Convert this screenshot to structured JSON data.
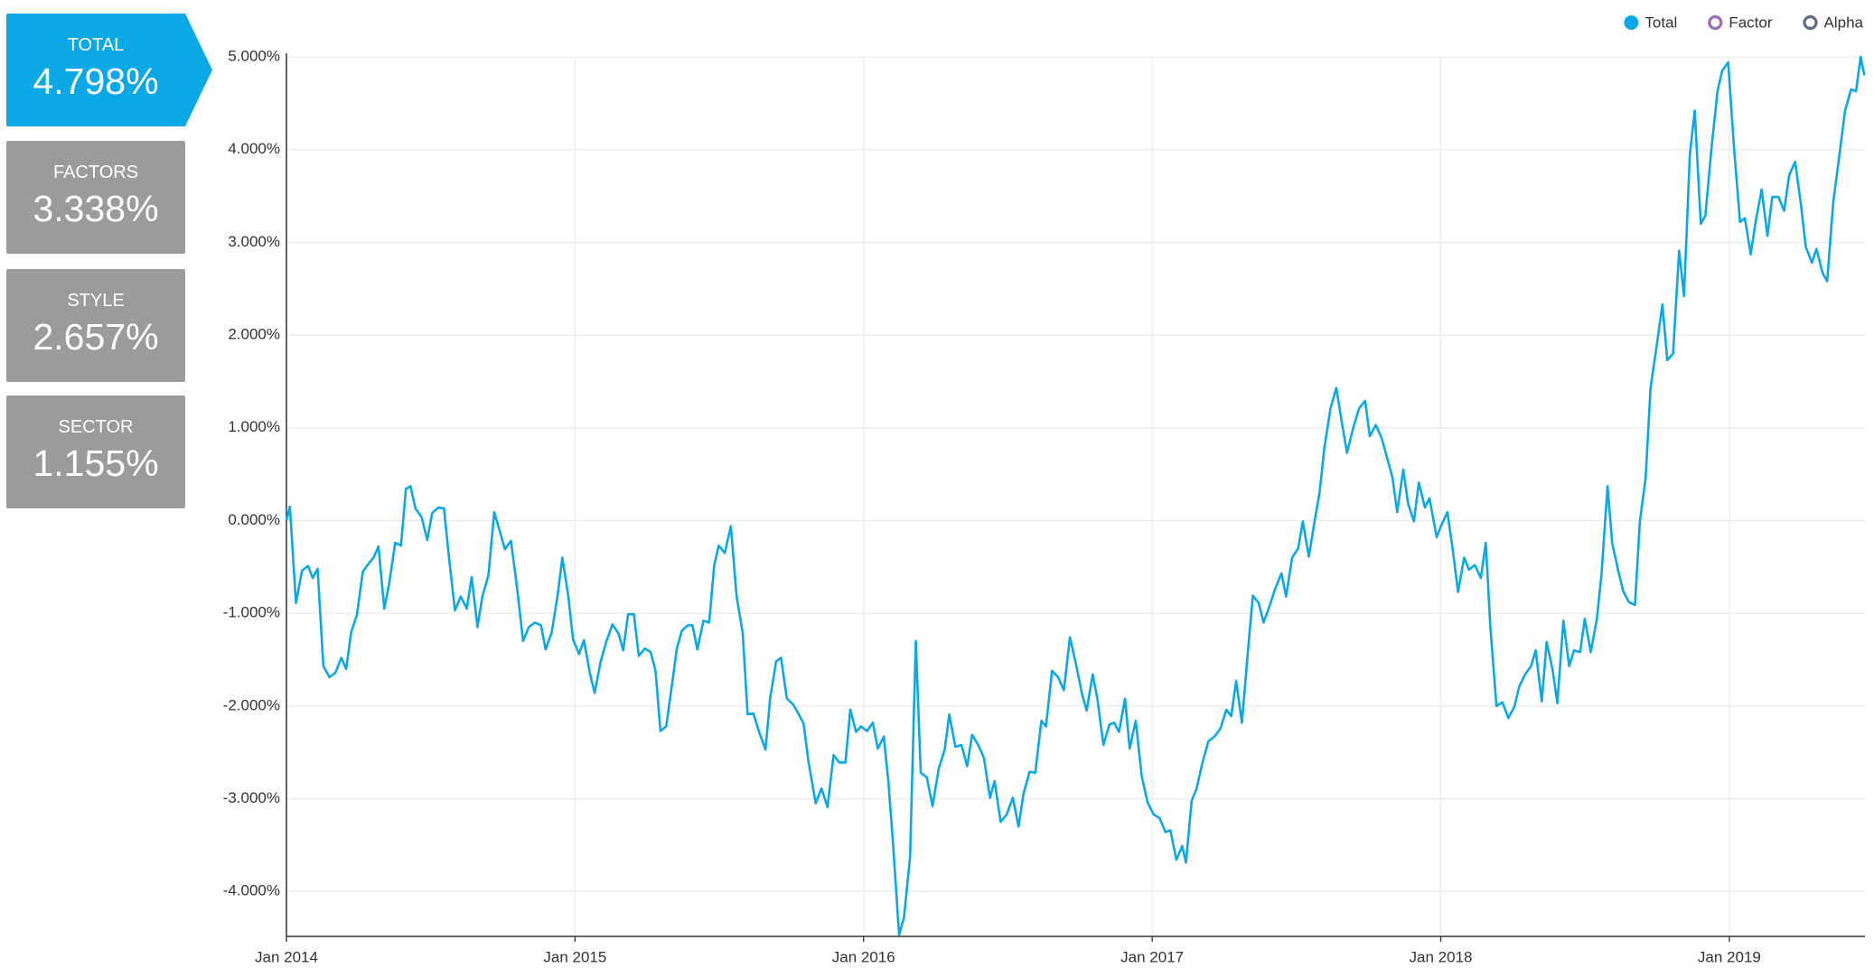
{
  "summary_cards": [
    {
      "label": "TOTAL",
      "value": "4.798%"
    },
    {
      "label": "FACTORS",
      "value": "3.338%"
    },
    {
      "label": "STYLE",
      "value": "2.657%"
    },
    {
      "label": "SECTOR",
      "value": "1.155%"
    }
  ],
  "chart_data": {
    "type": "line",
    "xlim": [
      2014,
      2019.47
    ],
    "xticks": [
      {
        "value": 2014,
        "label": "Jan 2014"
      },
      {
        "value": 2015,
        "label": "Jan 2015"
      },
      {
        "value": 2016,
        "label": "Jan 2016"
      },
      {
        "value": 2017,
        "label": "Jan 2017"
      },
      {
        "value": 2018,
        "label": "Jan 2018"
      },
      {
        "value": 2019,
        "label": "Jan 2019"
      }
    ],
    "ylim": [
      -4.485,
      5
    ],
    "yticks": [
      {
        "value": -4,
        "label": "-4.000%"
      },
      {
        "value": -3,
        "label": "-3.000%"
      },
      {
        "value": -2,
        "label": "-2.000%"
      },
      {
        "value": -1,
        "label": "-1.000%"
      },
      {
        "value": 0,
        "label": "0.000%"
      },
      {
        "value": 1,
        "label": "1.000%"
      },
      {
        "value": 2,
        "label": "2.000%"
      },
      {
        "value": 3,
        "label": "3.000%"
      },
      {
        "value": 4,
        "label": "4.000%"
      },
      {
        "value": 5,
        "label": "5.000%"
      }
    ],
    "grid": true,
    "legend": "top-right",
    "x": [
      2014.0,
      2014.012,
      2014.033,
      2014.054,
      2014.075,
      2014.091,
      2014.108,
      2014.128,
      2014.149,
      2014.17,
      2014.19,
      2014.207,
      2014.224,
      2014.244,
      2014.265,
      2014.286,
      2014.302,
      2014.319,
      2014.339,
      2014.356,
      2014.377,
      2014.397,
      2014.414,
      2014.43,
      2014.447,
      2014.468,
      2014.488,
      2014.505,
      2014.526,
      2014.546,
      2014.563,
      2014.584,
      2014.604,
      2014.625,
      2014.642,
      2014.662,
      2014.679,
      2014.7,
      2014.72,
      2014.737,
      2014.757,
      2014.778,
      2014.799,
      2014.82,
      2014.84,
      2014.861,
      2014.882,
      2014.898,
      2014.919,
      2014.94,
      2014.956,
      2014.977,
      2014.993,
      2015.014,
      2015.031,
      2015.051,
      2015.068,
      2015.089,
      2015.109,
      2015.13,
      2015.151,
      2015.167,
      2015.184,
      2015.204,
      2015.221,
      2015.242,
      2015.262,
      2015.279,
      2015.296,
      2015.316,
      2015.333,
      2015.353,
      2015.37,
      2015.391,
      2015.407,
      2015.424,
      2015.445,
      2015.465,
      2015.482,
      2015.498,
      2015.519,
      2015.54,
      2015.56,
      2015.581,
      2015.598,
      2015.618,
      2015.639,
      2015.66,
      2015.676,
      2015.697,
      2015.714,
      2015.734,
      2015.755,
      2015.772,
      2015.792,
      2015.809,
      2015.834,
      2015.854,
      2015.875,
      2015.896,
      2015.916,
      2015.937,
      2015.954,
      2015.974,
      2015.991,
      2016.012,
      2016.032,
      2016.049,
      2016.07,
      2016.086,
      2016.103,
      2016.123,
      2016.14,
      2016.161,
      2016.181,
      2016.198,
      2016.219,
      2016.239,
      2016.26,
      2016.281,
      2016.297,
      2016.318,
      2016.339,
      2016.359,
      2016.376,
      2016.397,
      2016.417,
      2016.438,
      2016.454,
      2016.475,
      2016.496,
      2016.517,
      2016.537,
      2016.554,
      2016.575,
      2016.595,
      2016.616,
      2016.632,
      2016.653,
      2016.674,
      2016.694,
      2016.715,
      2016.736,
      2016.757,
      2016.773,
      2016.794,
      2016.81,
      2016.831,
      2016.852,
      2016.868,
      2016.885,
      2016.906,
      2016.922,
      2016.943,
      2016.964,
      2016.984,
      2017.005,
      2017.026,
      2017.046,
      2017.063,
      2017.084,
      2017.104,
      2017.117,
      2017.137,
      2017.154,
      2017.175,
      2017.195,
      2017.216,
      2017.237,
      2017.257,
      2017.274,
      2017.291,
      2017.311,
      2017.332,
      2017.349,
      2017.369,
      2017.386,
      2017.406,
      2017.427,
      2017.448,
      2017.464,
      2017.485,
      2017.506,
      2017.522,
      2017.543,
      2017.56,
      2017.58,
      2017.597,
      2017.618,
      2017.638,
      2017.655,
      2017.675,
      2017.696,
      2017.717,
      2017.738,
      2017.754,
      2017.775,
      2017.795,
      2017.812,
      2017.833,
      2017.849,
      2017.87,
      2017.887,
      2017.907,
      2017.924,
      2017.945,
      2017.961,
      2017.986,
      2018.002,
      2018.023,
      2018.04,
      2018.06,
      2018.081,
      2018.098,
      2018.118,
      2018.139,
      2018.156,
      2018.172,
      2018.193,
      2018.214,
      2018.234,
      2018.255,
      2018.272,
      2018.292,
      2018.313,
      2018.329,
      2018.35,
      2018.367,
      2018.387,
      2018.404,
      2018.425,
      2018.445,
      2018.462,
      2018.483,
      2018.499,
      2018.52,
      2018.541,
      2018.557,
      2018.578,
      2018.594,
      2018.615,
      2018.632,
      2018.652,
      2018.673,
      2018.69,
      2018.71,
      2018.727,
      2018.748,
      2018.768,
      2018.785,
      2018.805,
      2018.826,
      2018.843,
      2018.863,
      2018.88,
      2018.901,
      2018.917,
      2018.938,
      2018.959,
      2018.975,
      2018.996,
      2019.017,
      2019.037,
      2019.054,
      2019.074,
      2019.091,
      2019.112,
      2019.132,
      2019.149,
      2019.17,
      2019.19,
      2019.207,
      2019.228,
      2019.248,
      2019.265,
      2019.286,
      2019.302,
      2019.323,
      2019.339,
      2019.36,
      2019.381,
      2019.401,
      2019.422,
      2019.439,
      2019.455,
      2019.468
    ],
    "series": [
      {
        "name": "Total",
        "color": "#0ba8e8",
        "values": [
          0,
          0.15,
          -0.89,
          -0.54,
          -0.49,
          -0.62,
          -0.52,
          -1.57,
          -1.69,
          -1.64,
          -1.48,
          -1.6,
          -1.21,
          -1.02,
          -0.55,
          -0.46,
          -0.4,
          -0.28,
          -0.95,
          -0.68,
          -0.24,
          -0.27,
          0.34,
          0.37,
          0.13,
          0.04,
          -0.21,
          0.08,
          0.14,
          0.13,
          -0.39,
          -0.97,
          -0.82,
          -0.95,
          -0.61,
          -1.15,
          -0.82,
          -0.59,
          0.09,
          -0.09,
          -0.31,
          -0.22,
          -0.72,
          -1.3,
          -1.15,
          -1.1,
          -1.13,
          -1.39,
          -1.21,
          -0.8,
          -0.4,
          -0.82,
          -1.28,
          -1.44,
          -1.29,
          -1.64,
          -1.86,
          -1.52,
          -1.3,
          -1.12,
          -1.22,
          -1.4,
          -1.01,
          -1.01,
          -1.46,
          -1.38,
          -1.42,
          -1.62,
          -2.27,
          -2.22,
          -1.84,
          -1.38,
          -1.19,
          -1.13,
          -1.13,
          -1.39,
          -1.08,
          -1.1,
          -0.49,
          -0.27,
          -0.35,
          -0.06,
          -0.82,
          -1.21,
          -2.09,
          -2.08,
          -2.29,
          -2.47,
          -1.92,
          -1.52,
          -1.48,
          -1.92,
          -1.98,
          -2.07,
          -2.19,
          -2.6,
          -3.05,
          -2.89,
          -3.09,
          -2.53,
          -2.61,
          -2.61,
          -2.04,
          -2.28,
          -2.22,
          -2.27,
          -2.18,
          -2.46,
          -2.33,
          -2.82,
          -3.53,
          -4.47,
          -4.28,
          -3.63,
          -1.3,
          -2.72,
          -2.77,
          -3.08,
          -2.68,
          -2.47,
          -2.09,
          -2.44,
          -2.42,
          -2.65,
          -2.31,
          -2.42,
          -2.56,
          -2.99,
          -2.81,
          -3.25,
          -3.17,
          -2.99,
          -3.3,
          -2.95,
          -2.71,
          -2.72,
          -2.16,
          -2.22,
          -1.62,
          -1.69,
          -1.83,
          -1.26,
          -1.55,
          -1.87,
          -2.05,
          -1.66,
          -1.92,
          -2.42,
          -2.2,
          -2.18,
          -2.28,
          -1.92,
          -2.46,
          -2.16,
          -2.76,
          -3.04,
          -3.17,
          -3.21,
          -3.36,
          -3.34,
          -3.66,
          -3.51,
          -3.69,
          -3.02,
          -2.89,
          -2.6,
          -2.38,
          -2.33,
          -2.24,
          -2.04,
          -2.11,
          -1.73,
          -2.18,
          -1.4,
          -0.81,
          -0.89,
          -1.1,
          -0.93,
          -0.73,
          -0.57,
          -0.82,
          -0.4,
          -0.3,
          -0.01,
          -0.39,
          -0.06,
          0.3,
          0.79,
          1.21,
          1.43,
          1.1,
          0.73,
          0.99,
          1.21,
          1.29,
          0.91,
          1.03,
          0.89,
          0.7,
          0.46,
          0.09,
          0.55,
          0.18,
          -0.01,
          0.41,
          0.14,
          0.24,
          -0.18,
          -0.05,
          0.09,
          -0.28,
          -0.77,
          -0.4,
          -0.53,
          -0.48,
          -0.62,
          -0.24,
          -1.15,
          -2.0,
          -1.96,
          -2.13,
          -2.01,
          -1.79,
          -1.66,
          -1.57,
          -1.4,
          -1.95,
          -1.31,
          -1.6,
          -1.97,
          -1.08,
          -1.57,
          -1.4,
          -1.42,
          -1.06,
          -1.42,
          -1.06,
          -0.58,
          0.37,
          -0.24,
          -0.54,
          -0.76,
          -0.88,
          -0.91,
          -0.01,
          0.46,
          1.43,
          1.88,
          2.33,
          1.73,
          1.8,
          2.91,
          2.42,
          3.94,
          4.42,
          3.2,
          3.29,
          4.01,
          4.63,
          4.85,
          4.94,
          3.99,
          3.22,
          3.26,
          2.87,
          3.22,
          3.57,
          3.07,
          3.49,
          3.49,
          3.34,
          3.72,
          3.87,
          3.41,
          2.95,
          2.78,
          2.93,
          2.67,
          2.58,
          3.43,
          3.93,
          4.42,
          4.65,
          4.63,
          5.0,
          4.8
        ]
      }
    ],
    "legend_only_series": [
      {
        "name": "Factor",
        "color": "#9b6bb5"
      },
      {
        "name": "Alpha",
        "color": "#5f6f7f"
      }
    ]
  }
}
